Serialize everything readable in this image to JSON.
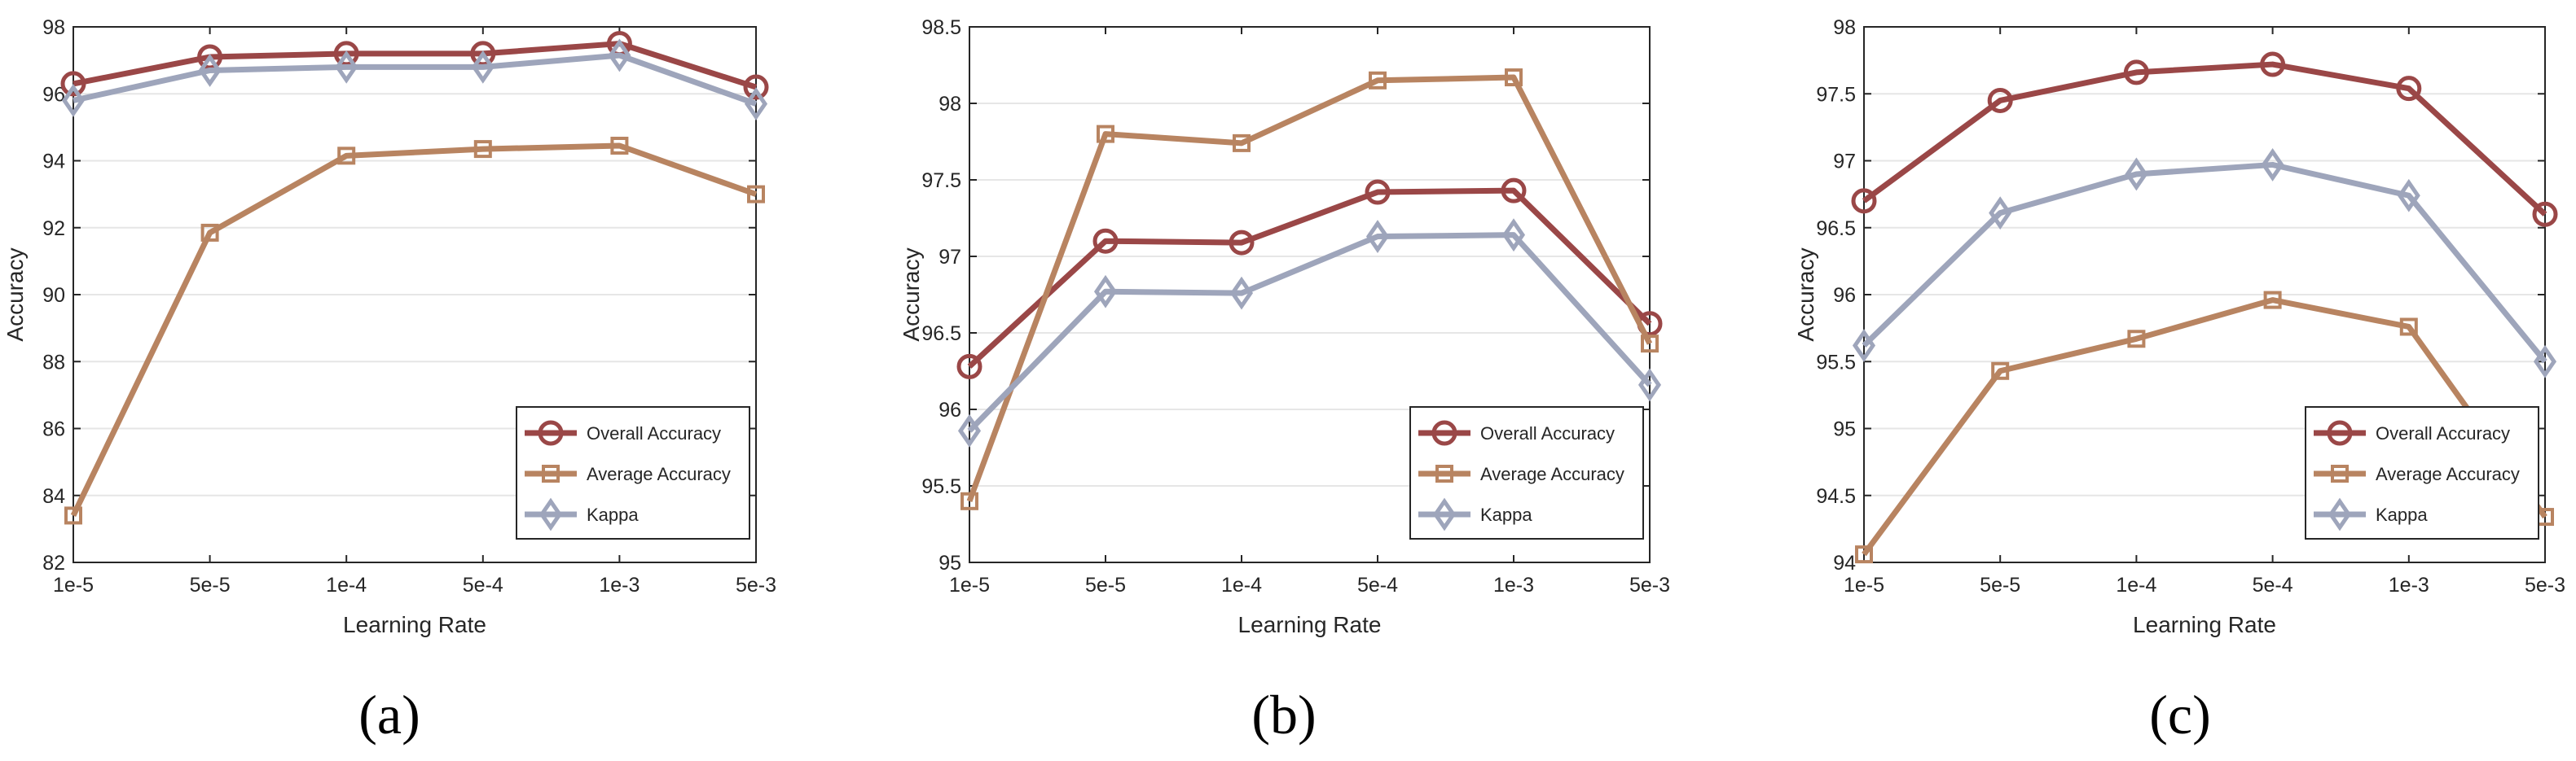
{
  "figure": {
    "captions": [
      "(a)",
      "(b)",
      "(c)"
    ]
  },
  "chart_data": [
    {
      "type": "line",
      "panel": "(a)",
      "xlabel": "Learning Rate",
      "ylabel": "Accuracy",
      "categories": [
        "1e-5",
        "5e-5",
        "1e-4",
        "5e-4",
        "1e-3",
        "5e-3"
      ],
      "ylim": [
        82,
        98
      ],
      "yticks": [
        82,
        84,
        86,
        88,
        90,
        92,
        94,
        96,
        98
      ],
      "ytick_labels": [
        "82",
        "84",
        "86",
        "88",
        "90",
        "92",
        "94",
        "96",
        "98"
      ],
      "grid": "horizontal",
      "legend_position": "bottom-right",
      "series": [
        {
          "name": "Overall Accuracy",
          "marker": "circle",
          "color": "#9a4747",
          "values": [
            96.3,
            97.1,
            97.2,
            97.2,
            97.5,
            96.2
          ]
        },
        {
          "name": "Average Accuracy",
          "marker": "square",
          "color": "#b88461",
          "values": [
            83.4,
            91.85,
            94.15,
            94.35,
            94.45,
            93.0
          ]
        },
        {
          "name": "Kappa",
          "marker": "diamond",
          "color": "#9ea5bb",
          "values": [
            95.8,
            96.7,
            96.8,
            96.8,
            97.15,
            95.7
          ]
        }
      ]
    },
    {
      "type": "line",
      "panel": "(b)",
      "xlabel": "Learning Rate",
      "ylabel": "Accuracy",
      "categories": [
        "1e-5",
        "5e-5",
        "1e-4",
        "5e-4",
        "1e-3",
        "5e-3"
      ],
      "ylim": [
        95,
        98.5
      ],
      "yticks": [
        95,
        95.5,
        96,
        96.5,
        97,
        97.5,
        98,
        98.5
      ],
      "ytick_labels": [
        "95",
        "95.5",
        "96",
        "96.5",
        "97",
        "97.5",
        "98",
        "98.5"
      ],
      "grid": "horizontal",
      "legend_position": "bottom-right",
      "series": [
        {
          "name": "Overall Accuracy",
          "marker": "circle",
          "color": "#9a4747",
          "values": [
            96.28,
            97.1,
            97.09,
            97.42,
            97.43,
            96.56
          ]
        },
        {
          "name": "Average Accuracy",
          "marker": "square",
          "color": "#b88461",
          "values": [
            95.4,
            97.8,
            97.74,
            98.15,
            98.17,
            96.43
          ]
        },
        {
          "name": "Kappa",
          "marker": "diamond",
          "color": "#9ea5bb",
          "values": [
            95.86,
            96.77,
            96.76,
            97.13,
            97.14,
            96.16
          ]
        }
      ]
    },
    {
      "type": "line",
      "panel": "(c)",
      "xlabel": "Learning Rate",
      "ylabel": "Accuracy",
      "categories": [
        "1e-5",
        "5e-5",
        "1e-4",
        "5e-4",
        "1e-3",
        "5e-3"
      ],
      "ylim": [
        94,
        98
      ],
      "yticks": [
        94,
        94.5,
        95,
        95.5,
        96,
        96.5,
        97,
        97.5,
        98
      ],
      "ytick_labels": [
        "94",
        "94.5",
        "95",
        "95.5",
        "96",
        "96.5",
        "97",
        "97.5",
        "98"
      ],
      "grid": "horizontal",
      "legend_position": "bottom-right",
      "series": [
        {
          "name": "Overall Accuracy",
          "marker": "circle",
          "color": "#9a4747",
          "values": [
            96.7,
            97.45,
            97.66,
            97.72,
            97.54,
            96.6
          ]
        },
        {
          "name": "Average Accuracy",
          "marker": "square",
          "color": "#b88461",
          "values": [
            94.06,
            95.43,
            95.67,
            95.96,
            95.76,
            94.34
          ]
        },
        {
          "name": "Kappa",
          "marker": "diamond",
          "color": "#9ea5bb",
          "values": [
            95.62,
            96.61,
            96.9,
            96.97,
            96.74,
            95.5
          ]
        }
      ]
    }
  ]
}
